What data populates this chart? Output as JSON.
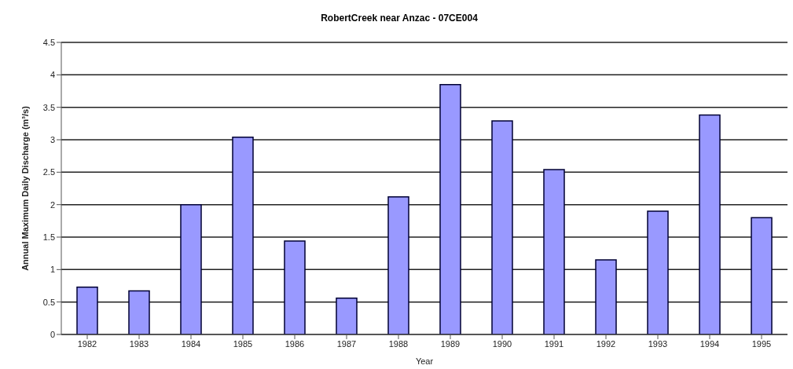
{
  "chart_data": {
    "type": "bar",
    "title": "RobertCreek near Anzac - 07CE004",
    "xlabel": "Year",
    "ylabel": "Annual Maximum Daily Discharge (m³/s)",
    "categories": [
      "1982",
      "1983",
      "1984",
      "1985",
      "1986",
      "1987",
      "1988",
      "1989",
      "1990",
      "1991",
      "1992",
      "1993",
      "1994",
      "1995"
    ],
    "values": [
      0.73,
      0.67,
      2.0,
      3.04,
      1.44,
      0.56,
      2.12,
      3.85,
      3.29,
      2.54,
      1.15,
      1.9,
      3.38,
      1.8
    ],
    "color": "#9999ff",
    "ylim": [
      0,
      4.5
    ],
    "yticks": [
      0,
      0.5,
      1,
      1.5,
      2,
      2.5,
      3,
      3.5,
      4,
      4.5
    ],
    "grid": "y"
  }
}
